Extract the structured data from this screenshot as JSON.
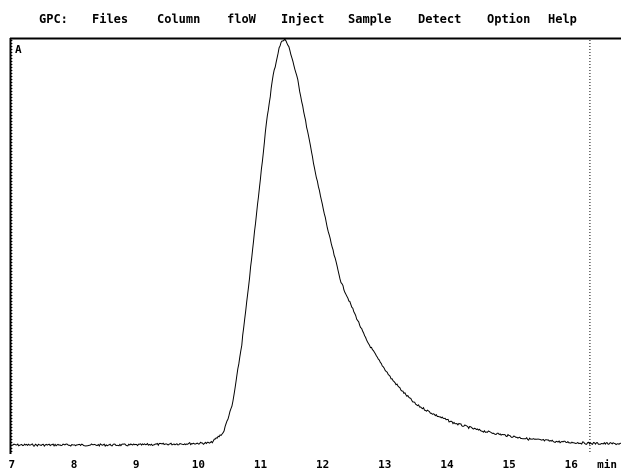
{
  "menu": {
    "title": "GPC:",
    "items": [
      "Files",
      "Column",
      "floW",
      "Inject",
      "Sample",
      "Detect",
      "Option",
      "Help"
    ]
  },
  "panel": {
    "channel_label": "A"
  },
  "colors": {
    "background": "#ffffff",
    "foreground": "#000000"
  },
  "chart_data": {
    "type": "line",
    "title": "",
    "xlabel": "min",
    "ylabel": "",
    "xlim": [
      6.97,
      16.8
    ],
    "ylim": [
      0,
      1.0
    ],
    "x_ticks": [
      "7",
      "8",
      "9",
      "10",
      "11",
      "12",
      "13",
      "14",
      "15",
      "16",
      "min"
    ],
    "x_tick_values": [
      7,
      8,
      9,
      10,
      11,
      12,
      13,
      14,
      15,
      16
    ],
    "grid": false,
    "markers": [
      7.0,
      16.3
    ],
    "series": [
      {
        "x": [
          7.0,
          9.0,
          10.2,
          10.4,
          10.55,
          10.7,
          10.8,
          10.9,
          11.0,
          11.1,
          11.2,
          11.3,
          11.35,
          11.4,
          11.45,
          11.5,
          11.6,
          11.7,
          11.8,
          11.9,
          12.0,
          12.1,
          12.2,
          12.3,
          12.5,
          12.7,
          12.9,
          13.1,
          13.3,
          13.5,
          13.8,
          14.1,
          14.5,
          14.9,
          15.3,
          15.8,
          16.3,
          16.8
        ],
        "y": [
          0.0,
          0.0,
          0.005,
          0.03,
          0.1,
          0.25,
          0.38,
          0.52,
          0.66,
          0.8,
          0.91,
          0.98,
          1.0,
          1.0,
          0.985,
          0.96,
          0.9,
          0.82,
          0.74,
          0.66,
          0.59,
          0.52,
          0.46,
          0.4,
          0.33,
          0.26,
          0.21,
          0.165,
          0.13,
          0.1,
          0.075,
          0.055,
          0.037,
          0.025,
          0.015,
          0.008,
          0.004,
          0.003
        ]
      }
    ]
  }
}
